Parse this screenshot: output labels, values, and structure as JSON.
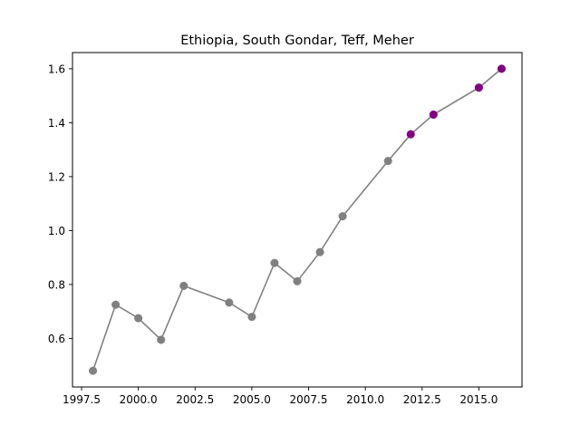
{
  "chart_data": {
    "type": "line",
    "title": "Ethiopia, South Gondar, Teff, Meher",
    "xlabel": "",
    "ylabel": "",
    "xlim": [
      1997.1,
      2016.9
    ],
    "ylim": [
      0.42,
      1.66
    ],
    "x_ticks": [
      1997.5,
      2000.0,
      2002.5,
      2005.0,
      2007.5,
      2010.0,
      2012.5,
      2015.0
    ],
    "x_tick_labels": [
      "1997.5",
      "2000.0",
      "2002.5",
      "2005.0",
      "2007.5",
      "2010.0",
      "2012.5",
      "2015.0"
    ],
    "y_ticks": [
      0.6,
      0.8,
      1.0,
      1.2,
      1.4,
      1.6
    ],
    "y_tick_labels": [
      "0.6",
      "0.8",
      "1.0",
      "1.2",
      "1.4",
      "1.6"
    ],
    "grid": false,
    "line_color": "#808080",
    "series": [
      {
        "color": "#808080",
        "points": [
          {
            "x": 1998,
            "y": 0.48
          },
          {
            "x": 1999,
            "y": 0.725
          },
          {
            "x": 2000,
            "y": 0.675
          },
          {
            "x": 2001,
            "y": 0.595
          },
          {
            "x": 2002,
            "y": 0.795
          },
          {
            "x": 2004,
            "y": 0.733
          },
          {
            "x": 2005,
            "y": 0.68
          },
          {
            "x": 2006,
            "y": 0.88
          },
          {
            "x": 2007,
            "y": 0.812
          },
          {
            "x": 2008,
            "y": 0.92
          },
          {
            "x": 2009,
            "y": 1.053
          },
          {
            "x": 2011,
            "y": 1.258
          }
        ]
      },
      {
        "color": "#800080",
        "points": [
          {
            "x": 2012,
            "y": 1.357
          },
          {
            "x": 2013,
            "y": 1.43
          },
          {
            "x": 2015,
            "y": 1.53
          },
          {
            "x": 2016,
            "y": 1.6
          }
        ]
      }
    ]
  }
}
